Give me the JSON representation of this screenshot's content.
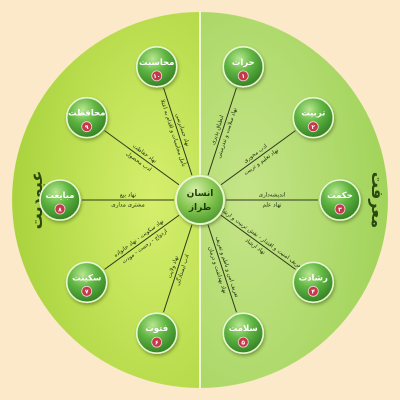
{
  "center": {
    "line1": "انسان",
    "line2": "طراز"
  },
  "sides": {
    "left": "عبودیت",
    "right": "معرفت"
  },
  "nodes": [
    {
      "id": "n1",
      "name": "حرات",
      "number": "۱",
      "text1": "انطباق پذیری",
      "text2": "نهاد سلامت و تندرستی"
    },
    {
      "id": "n2",
      "name": "تربیت",
      "number": "۲",
      "text1": "ادب محوری",
      "text2": "نهاد تعلیم و تربیت"
    },
    {
      "id": "n3",
      "name": "حکمت",
      "number": "۳",
      "text1": "اندیشه‌داری",
      "text2": "نهاد علم"
    },
    {
      "id": "n4",
      "name": "رشادت",
      "number": "۴",
      "text1": "تعریف امنیت و اقتدار - نقش تربیت و ارشاد",
      "text2": "نهاد ارشاد"
    },
    {
      "id": "n5",
      "name": "سلامت",
      "number": "۵",
      "text1": "تعریف امن و ناطم و تعریف",
      "text2": "نهاد بهداشت و درمان"
    },
    {
      "id": "n6",
      "name": "فتوت",
      "number": "۶",
      "text1": "ادب ایستادگی",
      "text2": "نهاد ولایت"
    },
    {
      "id": "n7",
      "name": "سکینت",
      "number": "۷",
      "text1": "ازدواج - رحمت - مودت",
      "text2": "نهاد سکونت - نهاد خانواده"
    },
    {
      "id": "n8",
      "name": "مبایعت",
      "number": "۸",
      "text1": "مشتری مداری",
      "text2": "نهاد بیع"
    },
    {
      "id": "n9",
      "name": "محافظت",
      "number": "۹",
      "text1": "ادب محصول",
      "text2": "نهاد حفاظت"
    },
    {
      "id": "n10",
      "name": "محاسبت",
      "number": "۱۰",
      "text1": "تأمل محاسبات و اقدام به اعتلا",
      "text2": "نهاد حسابرسی"
    }
  ],
  "colors": {
    "background": "#fbe9c9",
    "left_half": "#a9d43a",
    "right_half": "#a6d65c",
    "node_fill": "#3f9a2f",
    "node_highlight": "#a8dd7a",
    "badge": "#c23a4a",
    "side_label": "#2c4a0e"
  }
}
